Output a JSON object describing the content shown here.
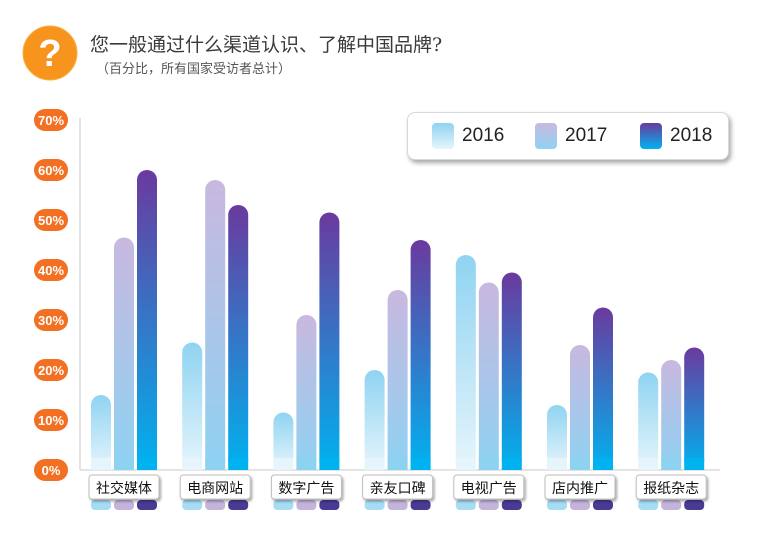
{
  "header": {
    "icon": "question-mark-icon",
    "title": "您一般通过什么渠道认识、了解中国品牌?",
    "subtitle": "（百分比，所有国家受访者总计）"
  },
  "colors": {
    "accent_orange": "#f7941d",
    "y_badge": "#f36f21",
    "series_2016": [
      "#d2edf7",
      "#8fd3f2"
    ],
    "series_2017": [
      "#c9bde0",
      "#90d0f0"
    ],
    "series_2018": [
      "#6a3a9e",
      "#00aeef"
    ]
  },
  "legend": [
    {
      "label": "2016"
    },
    {
      "label": "2017"
    },
    {
      "label": "2018"
    }
  ],
  "chart_data": {
    "type": "bar",
    "title": "您一般通过什么渠道认识、了解中国品牌?",
    "subtitle": "（百分比，所有国家受访者总计）",
    "categories": [
      "社交媒体",
      "电商网站",
      "数字广告",
      "亲友口碑",
      "电视广告",
      "店内推广",
      "报纸杂志"
    ],
    "series": [
      {
        "name": "2016",
        "values": [
          15,
          25.5,
          11.5,
          20,
          43,
          13,
          19.5
        ]
      },
      {
        "name": "2017",
        "values": [
          46.5,
          58,
          31,
          36,
          37.5,
          25,
          22
        ]
      },
      {
        "name": "2018",
        "values": [
          60,
          53,
          51.5,
          46,
          39.5,
          32.5,
          24.5
        ]
      }
    ],
    "ylim": [
      0,
      70
    ],
    "yticks": [
      "0%",
      "10%",
      "20%",
      "30%",
      "40%",
      "50%",
      "60%",
      "70%"
    ],
    "grid": false,
    "legend_position": "top-right"
  }
}
